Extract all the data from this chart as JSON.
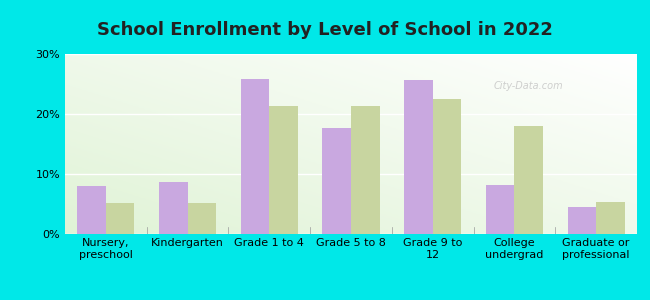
{
  "title": "School Enrollment by Level of School in 2022",
  "categories": [
    "Nursery,\npreschool",
    "Kindergarten",
    "Grade 1 to 4",
    "Grade 5 to 8",
    "Grade 9 to\n12",
    "College\nundergrad",
    "Graduate or\nprofessional"
  ],
  "zip_values": [
    8.0,
    8.7,
    25.8,
    17.7,
    25.7,
    8.2,
    4.5
  ],
  "tn_values": [
    5.2,
    5.1,
    21.3,
    21.3,
    22.5,
    18.0,
    5.3
  ],
  "zip_color": "#c9a8e0",
  "tn_color": "#c8d5a0",
  "background_color": "#00e8e8",
  "plot_bg_color": "#e8f5e0",
  "ylim": [
    0,
    30
  ],
  "yticks": [
    0,
    10,
    20,
    30
  ],
  "title_fontsize": 13,
  "tick_fontsize": 8,
  "legend_fontsize": 9,
  "bar_width": 0.35,
  "watermark": "City-Data.com"
}
